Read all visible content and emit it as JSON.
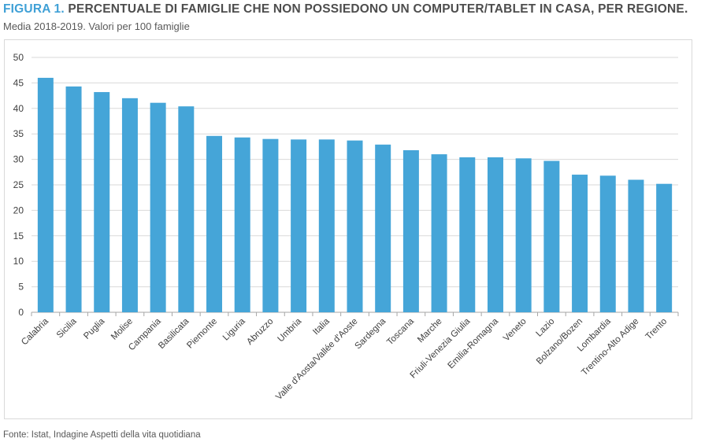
{
  "figure": {
    "label": "FIGURA 1.",
    "title": "PERCENTUALE DI FAMIGLIE CHE NON POSSIEDONO UN COMPUTER/TABLET IN CASA, PER REGIONE.",
    "subtitle": "Media 2018-2019. Valori per 100 famiglie",
    "source": "Fonte: Istat, Indagine Aspetti della vita quotidiana"
  },
  "colors": {
    "bar": "#45a5d8",
    "title_accent": "#3fa0d6",
    "grid": "#d9d9d9",
    "axis": "#a6a6a6",
    "text": "#404040"
  },
  "chart_data": {
    "type": "bar",
    "title": "PERCENTUALE DI FAMIGLIE CHE NON POSSIEDONO UN COMPUTER/TABLET IN CASA, PER REGIONE.",
    "xlabel": "",
    "ylabel": "",
    "ylim": [
      0,
      50
    ],
    "yticks": [
      0,
      5,
      10,
      15,
      20,
      25,
      30,
      35,
      40,
      45,
      50
    ],
    "grid": true,
    "legend": "none",
    "categories": [
      "Calabria",
      "Sicilia",
      "Puglia",
      "Molise",
      "Campania",
      "Basilicata",
      "Piemonte",
      "Liguria",
      "Abruzzo",
      "Umbria",
      "Italia",
      "Valle d'Aosta/Vallée d'Aoste",
      "Sardegna",
      "Toscana",
      "Marche",
      "Friuli-Venezia Giulia",
      "Emilia-Romagna",
      "Veneto",
      "Lazio",
      "Bolzano/Bozen",
      "Lombardia",
      "Trentino-Alto Adige",
      "Trento"
    ],
    "values": [
      46.0,
      44.3,
      43.2,
      42.0,
      41.1,
      40.4,
      34.6,
      34.3,
      34.0,
      33.9,
      33.9,
      33.7,
      32.9,
      31.8,
      31.0,
      30.4,
      30.4,
      30.2,
      29.7,
      27.0,
      26.8,
      26.0,
      25.2
    ]
  }
}
